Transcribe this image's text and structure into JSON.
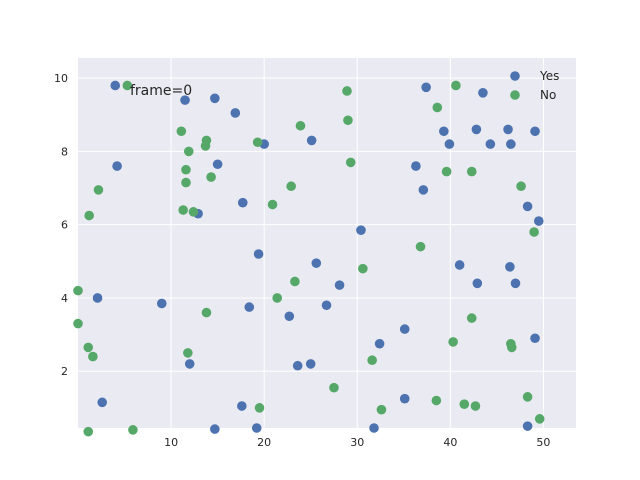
{
  "chart_data": {
    "type": "scatter",
    "annotation": "frame=0",
    "xlim": [
      0,
      53.5
    ],
    "ylim": [
      0.45,
      10.55
    ],
    "x_ticks": [
      10,
      20,
      30,
      40,
      50
    ],
    "y_ticks": [
      2,
      4,
      6,
      8,
      10
    ],
    "grid": true,
    "legend_position": "top-right",
    "series": [
      {
        "name": "Yes",
        "color": "#4c72b0",
        "points": [
          [
            4.0,
            9.8
          ],
          [
            11.5,
            9.4
          ],
          [
            14.7,
            9.45
          ],
          [
            16.9,
            9.05
          ],
          [
            37.4,
            9.75
          ],
          [
            43.5,
            9.6
          ],
          [
            39.3,
            8.55
          ],
          [
            42.8,
            8.6
          ],
          [
            46.2,
            8.6
          ],
          [
            49.1,
            8.55
          ],
          [
            39.9,
            8.2
          ],
          [
            44.3,
            8.2
          ],
          [
            46.5,
            8.2
          ],
          [
            25.1,
            8.3
          ],
          [
            20.0,
            8.2
          ],
          [
            4.2,
            7.6
          ],
          [
            15.0,
            7.65
          ],
          [
            36.3,
            7.6
          ],
          [
            37.1,
            6.95
          ],
          [
            17.7,
            6.6
          ],
          [
            12.9,
            6.3
          ],
          [
            48.3,
            6.5
          ],
          [
            49.5,
            6.1
          ],
          [
            30.4,
            5.85
          ],
          [
            19.4,
            5.2
          ],
          [
            25.6,
            4.95
          ],
          [
            41.0,
            4.9
          ],
          [
            46.4,
            4.85
          ],
          [
            42.9,
            4.4
          ],
          [
            47.0,
            4.4
          ],
          [
            28.1,
            4.35
          ],
          [
            2.1,
            4.0
          ],
          [
            9.0,
            3.85
          ],
          [
            18.4,
            3.75
          ],
          [
            26.7,
            3.8
          ],
          [
            22.7,
            3.5
          ],
          [
            35.1,
            3.15
          ],
          [
            32.4,
            2.75
          ],
          [
            49.1,
            2.9
          ],
          [
            12.0,
            2.2
          ],
          [
            23.6,
            2.15
          ],
          [
            25.0,
            2.2
          ],
          [
            2.6,
            1.15
          ],
          [
            35.1,
            1.25
          ],
          [
            17.6,
            1.05
          ],
          [
            31.8,
            0.45
          ],
          [
            19.2,
            0.45
          ],
          [
            14.7,
            0.42
          ],
          [
            48.3,
            0.5
          ]
        ]
      },
      {
        "name": "No",
        "color": "#55a868",
        "points": [
          [
            5.3,
            9.8
          ],
          [
            40.6,
            9.8
          ],
          [
            28.9,
            9.65
          ],
          [
            38.6,
            9.2
          ],
          [
            29.0,
            8.85
          ],
          [
            23.9,
            8.7
          ],
          [
            11.1,
            8.55
          ],
          [
            13.8,
            8.3
          ],
          [
            19.3,
            8.25
          ],
          [
            13.7,
            8.15
          ],
          [
            11.9,
            8.0
          ],
          [
            29.3,
            7.7
          ],
          [
            11.6,
            7.5
          ],
          [
            39.6,
            7.45
          ],
          [
            42.3,
            7.45
          ],
          [
            14.3,
            7.3
          ],
          [
            11.6,
            7.15
          ],
          [
            47.6,
            7.05
          ],
          [
            22.9,
            7.05
          ],
          [
            2.2,
            6.95
          ],
          [
            20.9,
            6.55
          ],
          [
            11.3,
            6.4
          ],
          [
            12.4,
            6.35
          ],
          [
            1.2,
            6.25
          ],
          [
            49.0,
            5.8
          ],
          [
            36.8,
            5.4
          ],
          [
            30.6,
            4.8
          ],
          [
            23.3,
            4.45
          ],
          [
            0.0,
            4.2
          ],
          [
            21.4,
            4.0
          ],
          [
            13.8,
            3.6
          ],
          [
            42.3,
            3.45
          ],
          [
            0.0,
            3.3
          ],
          [
            40.3,
            2.8
          ],
          [
            46.5,
            2.75
          ],
          [
            46.6,
            2.65
          ],
          [
            1.1,
            2.65
          ],
          [
            11.8,
            2.5
          ],
          [
            1.6,
            2.4
          ],
          [
            31.6,
            2.3
          ],
          [
            27.5,
            1.55
          ],
          [
            48.3,
            1.3
          ],
          [
            38.5,
            1.2
          ],
          [
            41.5,
            1.1
          ],
          [
            42.7,
            1.05
          ],
          [
            19.5,
            1.0
          ],
          [
            32.6,
            0.95
          ],
          [
            49.6,
            0.7
          ],
          [
            1.1,
            0.35
          ],
          [
            5.9,
            0.4
          ]
        ]
      }
    ]
  }
}
